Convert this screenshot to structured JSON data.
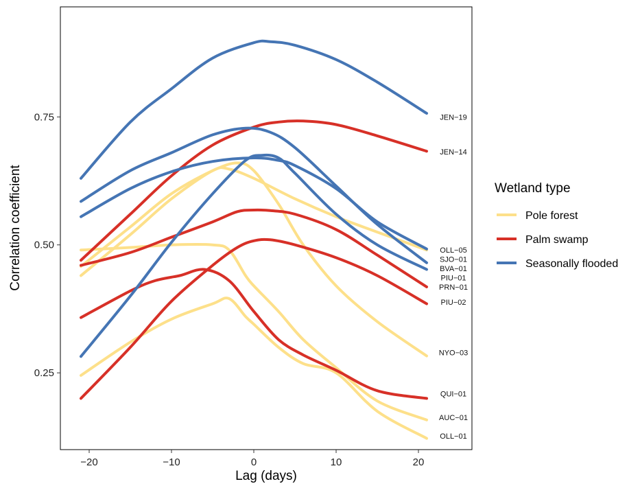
{
  "chart_data": {
    "type": "line",
    "xlabel": "Lag (days)",
    "ylabel": "Correlation coefficient",
    "xlim": [
      -23.5,
      26.5
    ],
    "ylim": [
      0.1,
      0.965
    ],
    "x_ticks": [
      -20,
      -10,
      0,
      10,
      20
    ],
    "x_tick_labels": [
      "−20",
      "−10",
      "0",
      "10",
      "20"
    ],
    "y_ticks": [
      0.25,
      0.5,
      0.75
    ],
    "y_tick_labels": [
      "0.25",
      "0.50",
      "0.75"
    ],
    "grid": false,
    "legend": {
      "title": "Wetland type",
      "placement": "right",
      "entries": [
        {
          "name": "Pole forest",
          "color": "#fde08a"
        },
        {
          "name": "Palm swamp",
          "color": "#d73027"
        },
        {
          "name": "Seasonally flooded",
          "color": "#4575b4"
        }
      ]
    },
    "series": [
      {
        "name": "JEN−19",
        "group": "Seasonally flooded",
        "color": "#4575b4",
        "x": [
          -21,
          -15,
          -10,
          -5,
          0,
          2,
          5,
          10,
          15,
          21
        ],
        "y": [
          0.63,
          0.74,
          0.805,
          0.865,
          0.895,
          0.897,
          0.89,
          0.862,
          0.818,
          0.757
        ]
      },
      {
        "name": "JEN−14",
        "group": "Palm swamp",
        "color": "#d73027",
        "x": [
          -21,
          -15,
          -10,
          -5,
          0,
          3,
          6,
          10,
          15,
          21
        ],
        "y": [
          0.47,
          0.56,
          0.635,
          0.695,
          0.73,
          0.74,
          0.742,
          0.735,
          0.713,
          0.683
        ]
      },
      {
        "name": "OLL−05",
        "group": "Pole forest",
        "color": "#fde08a",
        "x": [
          -21,
          -15,
          -10,
          -5,
          -3,
          0,
          5,
          10,
          15,
          21
        ],
        "y": [
          0.44,
          0.52,
          0.59,
          0.645,
          0.648,
          0.63,
          0.59,
          0.555,
          0.525,
          0.49
        ]
      },
      {
        "name": "SJO−01",
        "group": "Seasonally flooded",
        "color": "#4575b4",
        "x": [
          -21,
          -15,
          -10,
          -5,
          -1,
          2,
          5,
          10,
          15,
          21
        ],
        "y": [
          0.585,
          0.645,
          0.68,
          0.715,
          0.728,
          0.72,
          0.69,
          0.615,
          0.54,
          0.465
        ]
      },
      {
        "name": "BVA−01",
        "group": "Seasonally flooded",
        "color": "#4575b4",
        "x": [
          -21,
          -15,
          -10,
          -5,
          0,
          3,
          5,
          10,
          15,
          21
        ],
        "y": [
          0.555,
          0.61,
          0.643,
          0.663,
          0.67,
          0.665,
          0.655,
          0.61,
          0.545,
          0.492
        ]
      },
      {
        "name": "PIU−01",
        "group": "Seasonally flooded",
        "color": "#4575b4",
        "x": [
          -21,
          -15,
          -10,
          -5,
          -1,
          1,
          3,
          5,
          10,
          15,
          21
        ],
        "y": [
          0.282,
          0.4,
          0.505,
          0.6,
          0.665,
          0.675,
          0.67,
          0.64,
          0.56,
          0.5,
          0.452
        ]
      },
      {
        "name": "PRN−01",
        "group": "Palm swamp",
        "color": "#d73027",
        "x": [
          -21,
          -15,
          -10,
          -5,
          -2,
          0,
          2,
          5,
          10,
          15,
          21
        ],
        "y": [
          0.46,
          0.485,
          0.515,
          0.545,
          0.565,
          0.568,
          0.567,
          0.56,
          0.53,
          0.48,
          0.418
        ]
      },
      {
        "name": "PIU−02",
        "group": "Palm swamp",
        "color": "#d73027",
        "x": [
          -21,
          -15,
          -12,
          -9,
          -6,
          -3,
          0,
          3,
          6,
          10,
          15,
          21
        ],
        "y": [
          0.358,
          0.41,
          0.43,
          0.44,
          0.452,
          0.43,
          0.37,
          0.315,
          0.285,
          0.255,
          0.215,
          0.2
        ]
      },
      {
        "name": "NYO−03",
        "group": "Pole forest",
        "color": "#fde08a",
        "x": [
          -21,
          -15,
          -10,
          -5,
          -2,
          0,
          3,
          6,
          10,
          15,
          21
        ],
        "y": [
          0.458,
          0.535,
          0.6,
          0.645,
          0.66,
          0.645,
          0.58,
          0.5,
          0.42,
          0.35,
          0.283
        ]
      },
      {
        "name": "QUI−01",
        "group": "Palm swamp",
        "color": "#d73027",
        "x": [
          -21,
          -15,
          -10,
          -5,
          -2,
          0,
          2,
          5,
          10,
          15,
          21
        ],
        "y": [
          0.2,
          0.3,
          0.39,
          0.46,
          0.495,
          0.508,
          0.51,
          0.5,
          0.475,
          0.44,
          0.385
        ]
      },
      {
        "name": "AUC−01",
        "group": "Pole forest",
        "color": "#fde08a",
        "x": [
          -21,
          -15,
          -10,
          -5,
          -3,
          -1,
          0,
          3,
          6,
          10,
          15,
          21
        ],
        "y": [
          0.49,
          0.495,
          0.5,
          0.5,
          0.49,
          0.44,
          0.42,
          0.37,
          0.315,
          0.26,
          0.195,
          0.158
        ]
      },
      {
        "name": "OLL−01",
        "group": "Pole forest",
        "color": "#fde08a",
        "x": [
          -21,
          -15,
          -10,
          -5,
          -3,
          -1,
          0,
          3,
          6,
          10,
          15,
          21
        ],
        "y": [
          0.245,
          0.31,
          0.355,
          0.385,
          0.395,
          0.36,
          0.345,
          0.3,
          0.268,
          0.25,
          0.175,
          0.122
        ]
      }
    ],
    "end_labels": [
      {
        "text": "JEN−19",
        "y": 0.75
      },
      {
        "text": "JEN−14",
        "y": 0.682
      },
      {
        "text": "OLL−05",
        "y": 0.49
      },
      {
        "text": "SJO−01",
        "y": 0.472
      },
      {
        "text": "BVA−01",
        "y": 0.454
      },
      {
        "text": "PIU−01",
        "y": 0.436
      },
      {
        "text": "PRN−01",
        "y": 0.418
      },
      {
        "text": "PIU−02",
        "y": 0.388
      },
      {
        "text": "NYO−03",
        "y": 0.29
      },
      {
        "text": "QUI−01",
        "y": 0.209
      },
      {
        "text": "AUC−01",
        "y": 0.163
      },
      {
        "text": "OLL−01",
        "y": 0.127
      }
    ]
  }
}
